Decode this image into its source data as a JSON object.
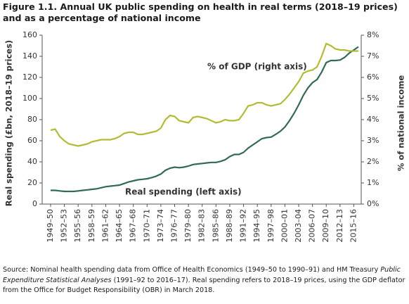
{
  "chart_data": {
    "type": "line",
    "title": "Figure 1.1. Annual UK public spending on health in real terms (2018–19 prices) and as a percentage of national income",
    "note": [
      "Source: Nominal health spending data from Office of Health Economics (1949–50 to 1990–91) and HM Treasury ",
      "Public Expenditure Statistical Analyses",
      " (1991–92 to 2016–17). Real spending refers to 2018–19 prices, using the GDP deflator from the Office for Budget Responsibility (OBR) in March 2018."
    ],
    "ylabel": "Real spending (£bn, 2018–19 prices)",
    "y2label": "% of national income",
    "annotations": [
      "% of GDP (right axis)",
      "Real spending (left axis)"
    ],
    "categories": [
      "1949–50",
      null,
      null,
      "1952–53",
      null,
      null,
      "1955–56",
      null,
      null,
      "1958–59",
      null,
      null,
      "1961–62",
      null,
      null,
      "1964–65",
      null,
      null,
      "1967–68",
      null,
      null,
      "1970–71",
      null,
      null,
      "1973–74",
      null,
      null,
      "1976–77",
      null,
      null,
      "1979–80",
      null,
      null,
      "1982–83",
      null,
      null,
      "1985–86",
      null,
      null,
      "1988–89",
      null,
      null,
      "1991–92",
      null,
      null,
      "1994–95",
      null,
      null,
      "1997–98",
      null,
      null,
      "2000–01",
      null,
      null,
      "2003–04",
      null,
      null,
      "2006–07",
      null,
      null,
      "2009–10",
      null,
      null,
      "2012–13",
      null,
      null,
      "2015–16",
      null
    ],
    "series": [
      {
        "name": "Real spending (left axis)",
        "color": "#2f6b58",
        "axis": "y",
        "values": [
          13,
          13,
          12.5,
          12,
          12,
          12,
          12.5,
          13,
          13.5,
          14,
          14.5,
          15.5,
          16.5,
          17,
          17.5,
          18,
          19.5,
          21,
          22,
          23,
          23.5,
          24,
          25,
          26.5,
          28.5,
          32,
          34,
          35,
          34.5,
          35,
          36,
          37.5,
          38,
          38.5,
          39,
          39.5,
          39.5,
          40.5,
          42,
          45,
          47,
          47,
          49,
          53,
          56,
          59,
          62,
          63,
          63.5,
          66,
          69,
          73,
          79,
          86,
          94,
          103,
          110,
          115,
          118,
          125,
          134,
          136,
          136,
          136.5,
          139,
          143,
          146,
          149
        ]
      },
      {
        "name": "% of GDP (right axis)",
        "color": "#b3bc32",
        "axis": "y2",
        "values": [
          3.5,
          3.55,
          3.2,
          3.0,
          2.85,
          2.8,
          2.75,
          2.8,
          2.85,
          2.95,
          3.0,
          3.05,
          3.05,
          3.05,
          3.1,
          3.2,
          3.35,
          3.4,
          3.4,
          3.3,
          3.3,
          3.35,
          3.4,
          3.45,
          3.6,
          4.0,
          4.2,
          4.15,
          3.95,
          3.9,
          3.85,
          4.1,
          4.15,
          4.1,
          4.05,
          3.95,
          3.85,
          3.9,
          4.0,
          3.95,
          3.95,
          4.0,
          4.3,
          4.65,
          4.7,
          4.8,
          4.8,
          4.7,
          4.65,
          4.7,
          4.75,
          4.95,
          5.2,
          5.5,
          5.8,
          6.2,
          6.3,
          6.35,
          6.5,
          7.0,
          7.6,
          7.5,
          7.35,
          7.3,
          7.3,
          7.25,
          7.25,
          7.25
        ]
      }
    ],
    "ylim": [
      0,
      160
    ],
    "yticks": [
      0,
      20,
      40,
      60,
      80,
      100,
      120,
      140,
      160
    ],
    "y2lim": [
      0,
      8
    ],
    "y2ticks": [
      {
        "value": 0,
        "label": "0%"
      },
      {
        "value": 1,
        "label": "1%"
      },
      {
        "value": 2,
        "label": "2%"
      },
      {
        "value": 3,
        "label": "3%"
      },
      {
        "value": 4,
        "label": "4%"
      },
      {
        "value": 5,
        "label": "5%"
      },
      {
        "value": 6,
        "label": "6%"
      },
      {
        "value": 7,
        "label": "7%"
      },
      {
        "value": 8,
        "label": "8%"
      }
    ],
    "grid": false
  }
}
